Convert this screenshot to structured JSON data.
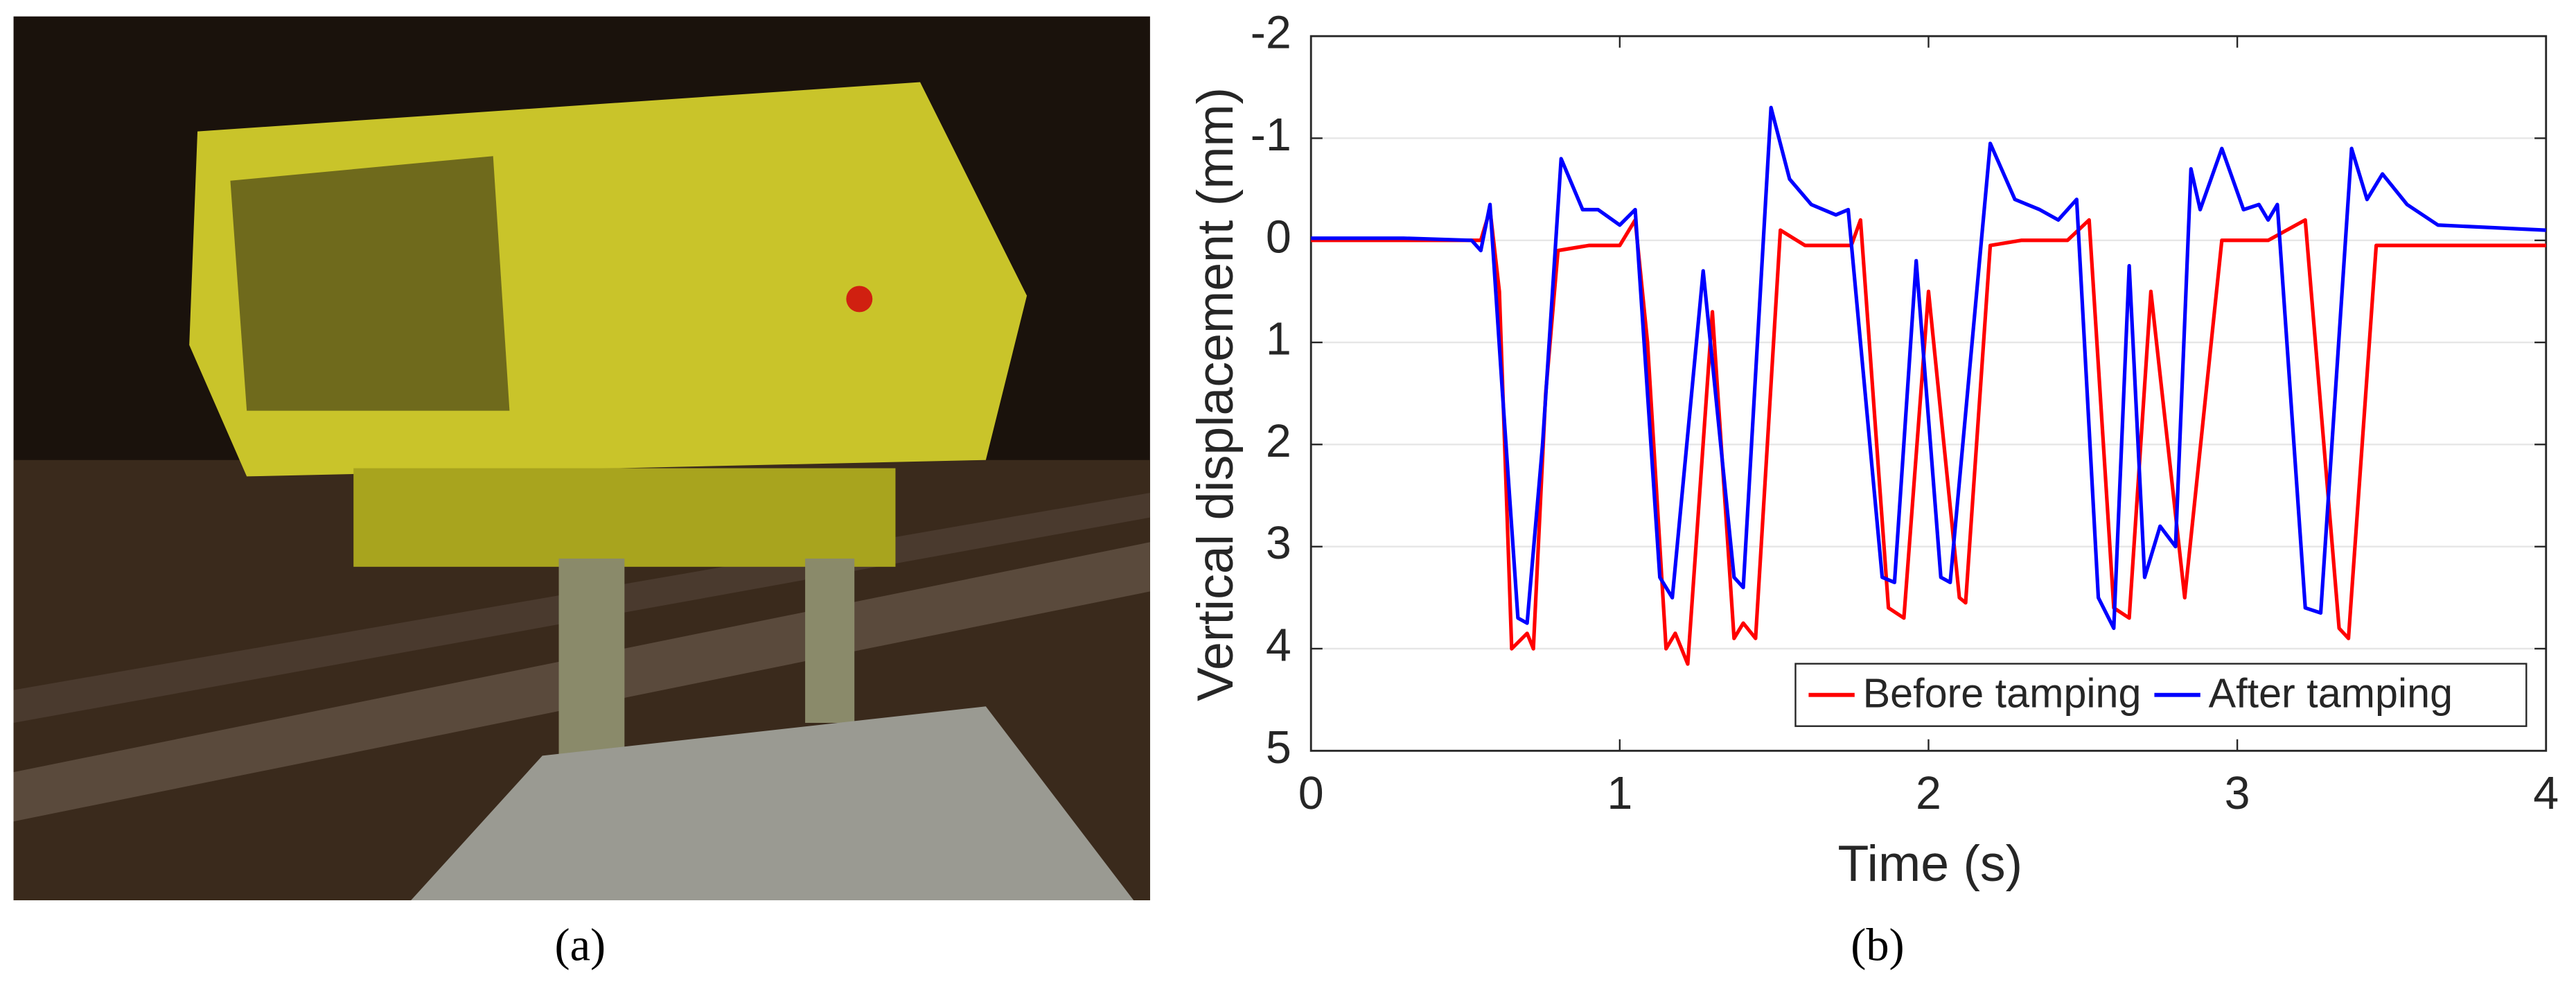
{
  "captions": [
    "(a)",
    "(b)"
  ],
  "chart_data": {
    "type": "line",
    "xlabel": "Time (s)",
    "ylabel": "Vertical displacement (mm)",
    "xlim": [
      0,
      4
    ],
    "xticks": [
      0,
      1,
      2,
      3,
      4
    ],
    "ylim": [
      -2,
      5
    ],
    "yticks": [
      -2,
      -1,
      0,
      1,
      2,
      3,
      4,
      5
    ],
    "y_reversed": true,
    "grid": true,
    "legend": "lower right",
    "series": [
      {
        "name": "Before tamping",
        "color": "#ff0000",
        "x": [
          0,
          0.3,
          0.5,
          0.55,
          0.58,
          0.61,
          0.65,
          0.7,
          0.72,
          0.76,
          0.8,
          0.9,
          1.0,
          1.05,
          1.09,
          1.15,
          1.18,
          1.22,
          1.3,
          1.37,
          1.4,
          1.44,
          1.52,
          1.6,
          1.75,
          1.78,
          1.87,
          1.92,
          2.0,
          2.1,
          2.12,
          2.2,
          2.3,
          2.45,
          2.52,
          2.6,
          2.65,
          2.72,
          2.83,
          2.95,
          3.1,
          3.22,
          3.33,
          3.36,
          3.45,
          3.7,
          4.0
        ],
        "values": [
          0,
          0,
          0,
          0,
          -0.3,
          0.5,
          4.0,
          3.85,
          4.0,
          1.5,
          0.1,
          0.05,
          0.05,
          -0.2,
          1.0,
          4.0,
          3.85,
          4.15,
          0.7,
          3.9,
          3.75,
          3.9,
          -0.1,
          0.05,
          0.05,
          -0.2,
          3.6,
          3.7,
          0.5,
          3.5,
          3.55,
          0.05,
          0,
          0,
          -0.2,
          3.6,
          3.7,
          0.5,
          3.5,
          0,
          0,
          -0.2,
          3.8,
          3.9,
          0.05,
          0.05,
          0.05
        ]
      },
      {
        "name": "After tamping",
        "color": "#0000ff",
        "x": [
          0,
          0.3,
          0.52,
          0.55,
          0.58,
          0.62,
          0.67,
          0.7,
          0.75,
          0.81,
          0.88,
          0.93,
          1.0,
          1.05,
          1.13,
          1.17,
          1.27,
          1.37,
          1.4,
          1.49,
          1.55,
          1.62,
          1.7,
          1.74,
          1.85,
          1.89,
          1.96,
          2.04,
          2.07,
          2.2,
          2.28,
          2.36,
          2.42,
          2.48,
          2.55,
          2.6,
          2.65,
          2.7,
          2.75,
          2.8,
          2.85,
          2.88,
          2.95,
          3.02,
          3.07,
          3.1,
          3.13,
          3.22,
          3.27,
          3.37,
          3.42,
          3.47,
          3.55,
          3.65,
          4.0
        ],
        "values": [
          -0.02,
          -0.02,
          0,
          0.1,
          -0.35,
          1.5,
          3.7,
          3.75,
          2.0,
          -0.8,
          -0.3,
          -0.3,
          -0.15,
          -0.3,
          3.3,
          3.5,
          0.3,
          3.3,
          3.4,
          -1.3,
          -0.6,
          -0.35,
          -0.25,
          -0.3,
          3.3,
          3.35,
          0.2,
          3.3,
          3.35,
          -0.95,
          -0.4,
          -0.3,
          -0.2,
          -0.4,
          3.5,
          3.8,
          0.25,
          3.3,
          2.8,
          3.0,
          -0.7,
          -0.3,
          -0.9,
          -0.3,
          -0.35,
          -0.2,
          -0.35,
          3.6,
          3.65,
          -0.9,
          -0.4,
          -0.65,
          -0.35,
          -0.15,
          -0.1
        ]
      }
    ]
  }
}
